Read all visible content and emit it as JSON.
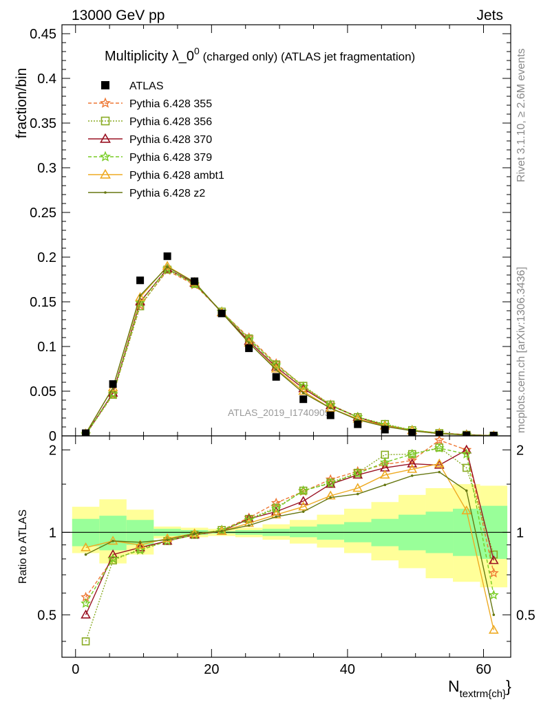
{
  "header": {
    "left": "13000 GeV pp",
    "right": "Jets"
  },
  "side_labels": {
    "rivet": "Rivet 3.1.10, ≥ 2.6M events",
    "mcplots": "mcplots.cern.ch [arXiv:1306.3436]"
  },
  "chart_data": [
    {
      "type": "scatter",
      "panel": "main",
      "title": "Multiplicity λ_0",
      "title_sup": "0",
      "title_suffix": " (charged only) (ATLAS jet fragmentation)",
      "ylabel": "fraction/bin",
      "watermark": "ATLAS_2019_I1740909",
      "xlim": [
        -2,
        64
      ],
      "ylim": [
        0,
        0.46
      ],
      "x_ticks": [
        0,
        20,
        40,
        60
      ],
      "y_ticks": [
        0,
        0.05,
        0.1,
        0.15,
        0.2,
        0.25,
        0.3,
        0.35,
        0.4,
        0.45
      ],
      "y_tick_labels": [
        "0",
        "0.05",
        "0.1",
        "0.15",
        "0.2",
        "0.25",
        "0.3",
        "0.35",
        "0.4",
        "0.45"
      ],
      "x": [
        1.5,
        5.5,
        9.5,
        13.5,
        17.5,
        21.5,
        25.5,
        29.5,
        33.5,
        37.5,
        41.5,
        45.5,
        49.5,
        53.5,
        57.5,
        61.5
      ],
      "legend_position": "top-left",
      "series": [
        {
          "name": "ATLAS",
          "marker": "square",
          "color": "#000000",
          "values": [
            0.003,
            0.058,
            0.174,
            0.201,
            0.173,
            0.137,
            0.098,
            0.066,
            0.041,
            0.023,
            0.013,
            0.007,
            0.0035,
            0.0015,
            0.0007,
            0.0003
          ]
        },
        {
          "name": "Pythia 6.428 355",
          "marker": "star",
          "color": "#ee7733",
          "dash": "5,3",
          "values": [
            0.0018,
            0.046,
            0.146,
            0.185,
            0.169,
            0.139,
            0.11,
            0.081,
            0.055,
            0.035,
            0.021,
            0.012,
            0.0063,
            0.0033,
            0.0014,
            0.0002
          ]
        },
        {
          "name": "Pythia 6.428 356",
          "marker": "open-square",
          "color": "#88aa22",
          "dash": "2,2",
          "values": [
            0.0012,
            0.046,
            0.145,
            0.186,
            0.17,
            0.139,
            0.109,
            0.08,
            0.056,
            0.035,
            0.021,
            0.0133,
            0.0064,
            0.0031,
            0.0012,
            0.00025
          ]
        },
        {
          "name": "Pythia 6.428 370",
          "marker": "open-triangle",
          "color": "#991122",
          "dash": "",
          "values": [
            0.0015,
            0.048,
            0.15,
            0.187,
            0.171,
            0.138,
            0.106,
            0.077,
            0.053,
            0.034,
            0.021,
            0.0115,
            0.006,
            0.0025,
            0.0014,
            0.00024
          ]
        },
        {
          "name": "Pythia 6.428 379",
          "marker": "star",
          "color": "#77cc22",
          "dash": "5,3",
          "values": [
            0.0017,
            0.047,
            0.149,
            0.187,
            0.17,
            0.139,
            0.108,
            0.079,
            0.055,
            0.034,
            0.021,
            0.0125,
            0.0066,
            0.0031,
            0.0013,
            0.00018
          ]
        },
        {
          "name": "Pythia 6.428 ambt1",
          "marker": "open-triangle",
          "color": "#eeaa22",
          "dash": "",
          "values": [
            0.0027,
            0.054,
            0.155,
            0.19,
            0.172,
            0.138,
            0.104,
            0.075,
            0.05,
            0.031,
            0.019,
            0.0112,
            0.0058,
            0.0026,
            0.00084,
            0.00013
          ]
        },
        {
          "name": "Pythia 6.428 z2",
          "marker": "dot",
          "color": "#667711",
          "dash": "",
          "values": [
            0.0025,
            0.054,
            0.157,
            0.189,
            0.172,
            0.138,
            0.104,
            0.074,
            0.048,
            0.031,
            0.018,
            0.0105,
            0.0056,
            0.0025,
            0.001,
            0.00015
          ]
        }
      ]
    },
    {
      "type": "line",
      "panel": "ratio",
      "ylabel": "Ratio to ATLAS",
      "xlabel": "N",
      "xlabel_sub": "textrm{ch}",
      "xlim": [
        -2,
        64
      ],
      "ylim": [
        0.35,
        2.25
      ],
      "x_ticks": [
        0,
        20,
        40,
        60
      ],
      "x_tick_labels": [
        "0",
        "20",
        "40",
        "60"
      ],
      "y_ticks": [
        0.5,
        1,
        2
      ],
      "y_tick_labels": [
        "0.5",
        "1",
        "2"
      ],
      "x": [
        1.5,
        5.5,
        9.5,
        13.5,
        17.5,
        21.5,
        25.5,
        29.5,
        33.5,
        37.5,
        41.5,
        45.5,
        49.5,
        53.5,
        57.5,
        61.5
      ],
      "bands": {
        "bin_edges": [
          -0.5,
          3.5,
          7.5,
          11.5,
          15.5,
          19.5,
          23.5,
          27.5,
          31.5,
          35.5,
          39.5,
          43.5,
          47.5,
          51.5,
          55.5,
          59.5,
          63.5
        ],
        "green_lower": [
          0.89,
          0.86,
          0.9,
          0.97,
          0.98,
          0.99,
          0.98,
          0.97,
          0.96,
          0.94,
          0.92,
          0.89,
          0.86,
          0.84,
          0.82,
          0.8
        ],
        "green_upper": [
          1.12,
          1.15,
          1.11,
          1.03,
          1.02,
          1.01,
          1.02,
          1.03,
          1.05,
          1.07,
          1.09,
          1.12,
          1.16,
          1.19,
          1.22,
          1.25
        ],
        "yellow_lower": [
          0.84,
          0.77,
          0.83,
          0.95,
          0.96,
          0.97,
          0.96,
          0.94,
          0.91,
          0.88,
          0.84,
          0.79,
          0.74,
          0.68,
          0.66,
          0.63
        ],
        "yellow_upper": [
          1.24,
          1.32,
          1.21,
          1.05,
          1.04,
          1.03,
          1.04,
          1.07,
          1.11,
          1.16,
          1.22,
          1.29,
          1.37,
          1.45,
          1.5,
          1.48
        ],
        "green_color": "#99ff99",
        "yellow_color": "#ffff99"
      },
      "series": [
        {
          "name": "Pythia 6.428 355",
          "values": [
            0.58,
            0.8,
            0.86,
            0.93,
            0.98,
            1.02,
            1.13,
            1.28,
            1.41,
            1.56,
            1.67,
            1.77,
            1.83,
            2.17,
            2.0,
            0.71
          ]
        },
        {
          "name": "Pythia 6.428 356",
          "values": [
            0.4,
            0.79,
            0.87,
            0.93,
            0.98,
            1.02,
            1.12,
            1.23,
            1.42,
            1.52,
            1.65,
            1.92,
            1.93,
            2.04,
            1.72,
            0.83
          ]
        },
        {
          "name": "Pythia 6.428 370",
          "values": [
            0.5,
            0.83,
            0.88,
            0.93,
            0.98,
            1.01,
            1.12,
            1.19,
            1.3,
            1.5,
            1.62,
            1.72,
            1.78,
            1.76,
            2.0,
            0.79
          ]
        },
        {
          "name": "Pythia 6.428 379",
          "values": [
            0.55,
            0.8,
            0.86,
            0.93,
            0.98,
            1.02,
            1.11,
            1.22,
            1.42,
            1.51,
            1.64,
            1.8,
            1.93,
            2.03,
            1.93,
            0.59
          ]
        },
        {
          "name": "Pythia 6.428 ambt1",
          "values": [
            0.88,
            0.93,
            0.9,
            0.95,
            0.99,
            1.01,
            1.08,
            1.16,
            1.24,
            1.36,
            1.45,
            1.62,
            1.7,
            1.78,
            1.2,
            0.44
          ]
        },
        {
          "name": "Pythia 6.428 z2",
          "values": [
            0.83,
            0.93,
            0.92,
            0.94,
            0.99,
            1.01,
            1.06,
            1.14,
            1.19,
            1.34,
            1.38,
            1.49,
            1.61,
            1.66,
            1.42,
            0.5
          ]
        }
      ]
    }
  ]
}
